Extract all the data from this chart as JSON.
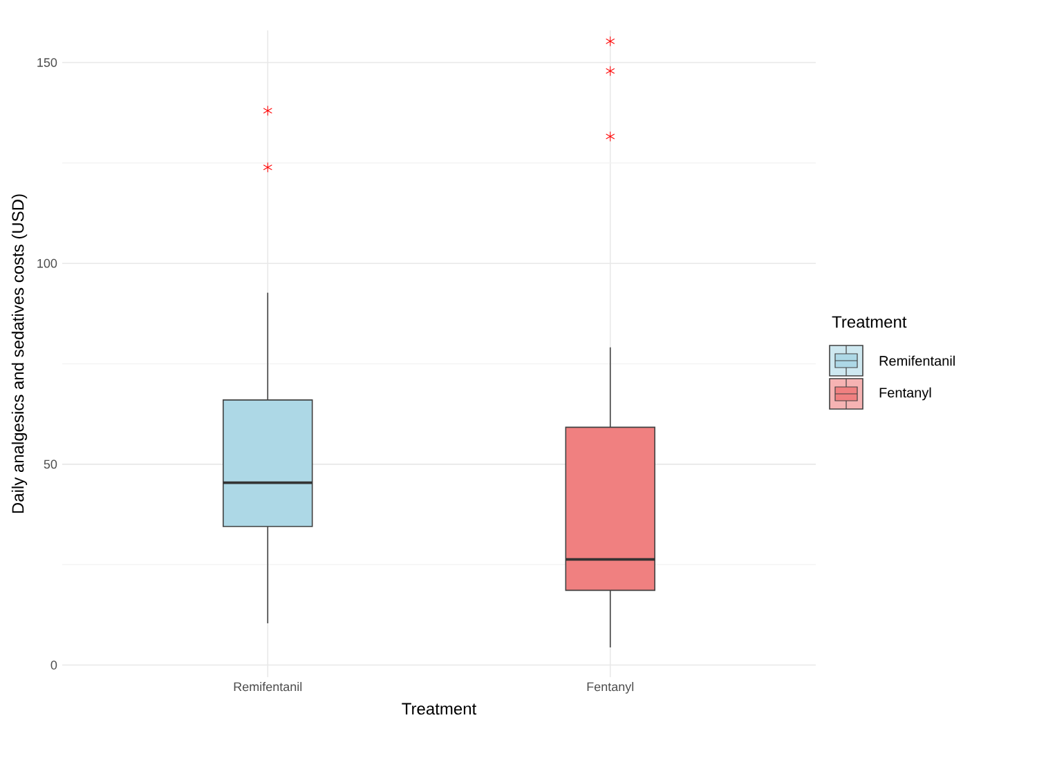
{
  "chart_data": {
    "type": "box",
    "xlabel": "Treatment",
    "ylabel": "Daily analgesics and sedatives costs (USD)",
    "legend_title": "Treatment",
    "categories": [
      "Remifentanil",
      "Fentanyl"
    ],
    "series": [
      {
        "name": "Remifentanil",
        "color": "#add8e6",
        "boxes": [
          {
            "low": 10.4,
            "q1": 34.5,
            "median": 45.4,
            "q3": 66.0,
            "high": 92.7,
            "outliers": [
              123.9,
              138.0
            ]
          },
          null
        ]
      },
      {
        "name": "Fentanyl",
        "color": "#f08080",
        "boxes": [
          null,
          {
            "low": 4.4,
            "q1": 18.6,
            "median": 26.3,
            "q3": 59.2,
            "high": 79.1,
            "outliers": [
              131.6,
              147.9,
              155.3
            ]
          }
        ]
      }
    ],
    "ylim": [
      -3,
      158
    ],
    "yticks": [
      0,
      50,
      100,
      150
    ],
    "grid": true,
    "legend": "right"
  }
}
